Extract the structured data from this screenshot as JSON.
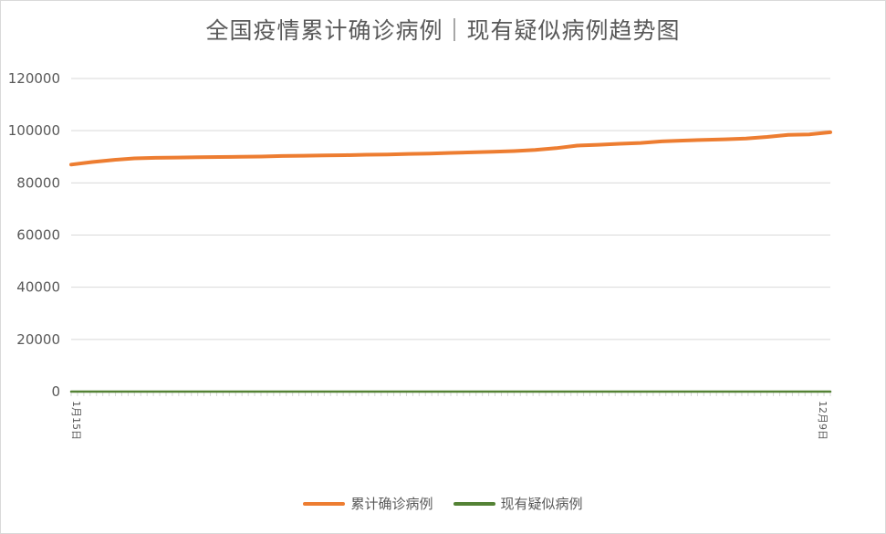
{
  "chart_data": {
    "type": "line",
    "title": "全国疫情累计确诊病例｜现有疑似病例趋势图",
    "ylim": [
      0,
      120000
    ],
    "yticks": [
      0,
      20000,
      40000,
      60000,
      80000,
      100000,
      120000
    ],
    "grid": "horizontal",
    "legend_position": "bottom",
    "x_start": "1月15日",
    "x_end": "12月9日",
    "series": [
      {
        "name": "累计确诊病例",
        "color": "#ed7d31",
        "values": [
          87000,
          88000,
          88800,
          89400,
          89600,
          89700,
          89800,
          89900,
          90000,
          90100,
          90300,
          90400,
          90500,
          90600,
          90800,
          90900,
          91100,
          91200,
          91500,
          91700,
          91900,
          92200,
          92600,
          93300,
          94300,
          94600,
          95000,
          95300,
          95900,
          96200,
          96500,
          96700,
          97000,
          97600,
          98400,
          98600,
          99400
        ]
      },
      {
        "name": "现有疑似病例",
        "color": "#548235",
        "values": [
          1,
          1,
          1,
          0,
          0,
          0,
          0,
          0,
          0,
          0,
          0,
          0,
          0,
          0,
          0,
          0,
          0,
          0,
          0,
          0,
          0,
          0,
          0,
          0,
          0,
          0,
          0,
          0,
          0,
          0,
          0,
          0,
          0,
          0,
          0,
          0,
          0
        ]
      }
    ]
  }
}
